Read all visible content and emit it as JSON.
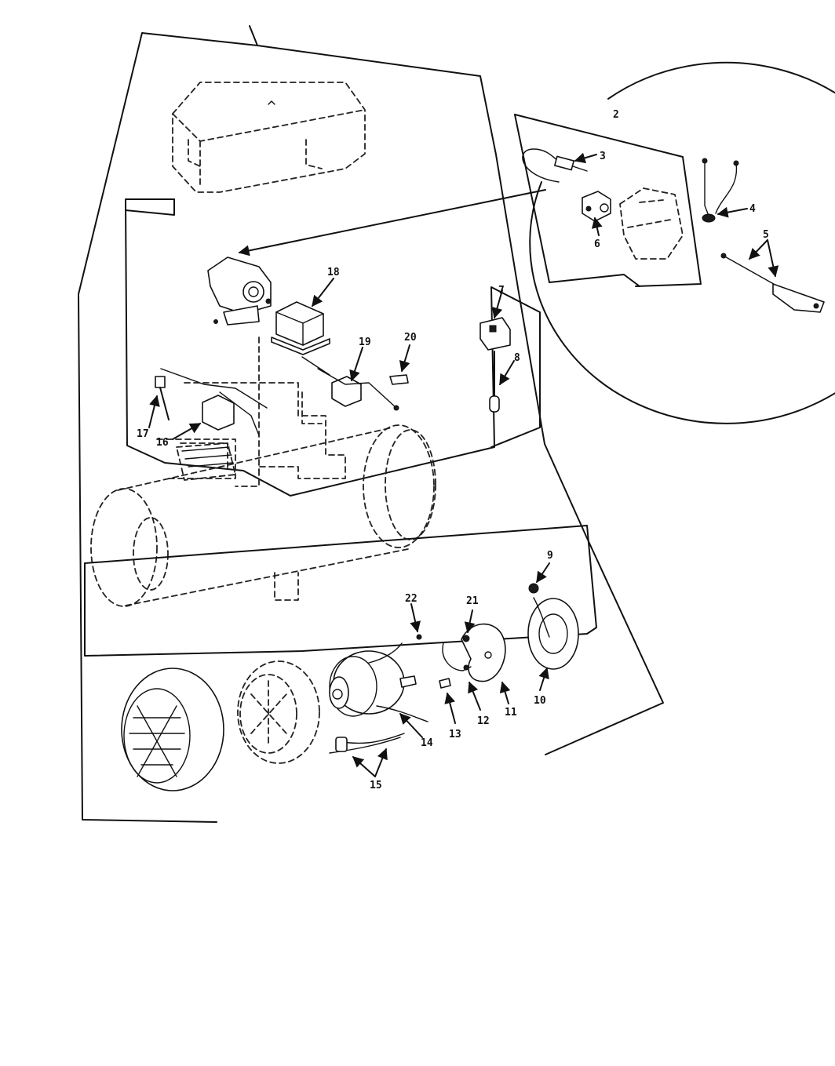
{
  "callouts": {
    "c2": "2",
    "c3": "3",
    "c4": "4",
    "c5": "5",
    "c6": "6",
    "c7": "7",
    "c8": "8",
    "c9": "9",
    "c10": "10",
    "c11": "11",
    "c12": "12",
    "c13": "13",
    "c14": "14",
    "c15": "15",
    "c16": "16",
    "c17": "17",
    "c18": "18",
    "c19": "19",
    "c20": "20",
    "c21": "21",
    "c22": "22"
  }
}
